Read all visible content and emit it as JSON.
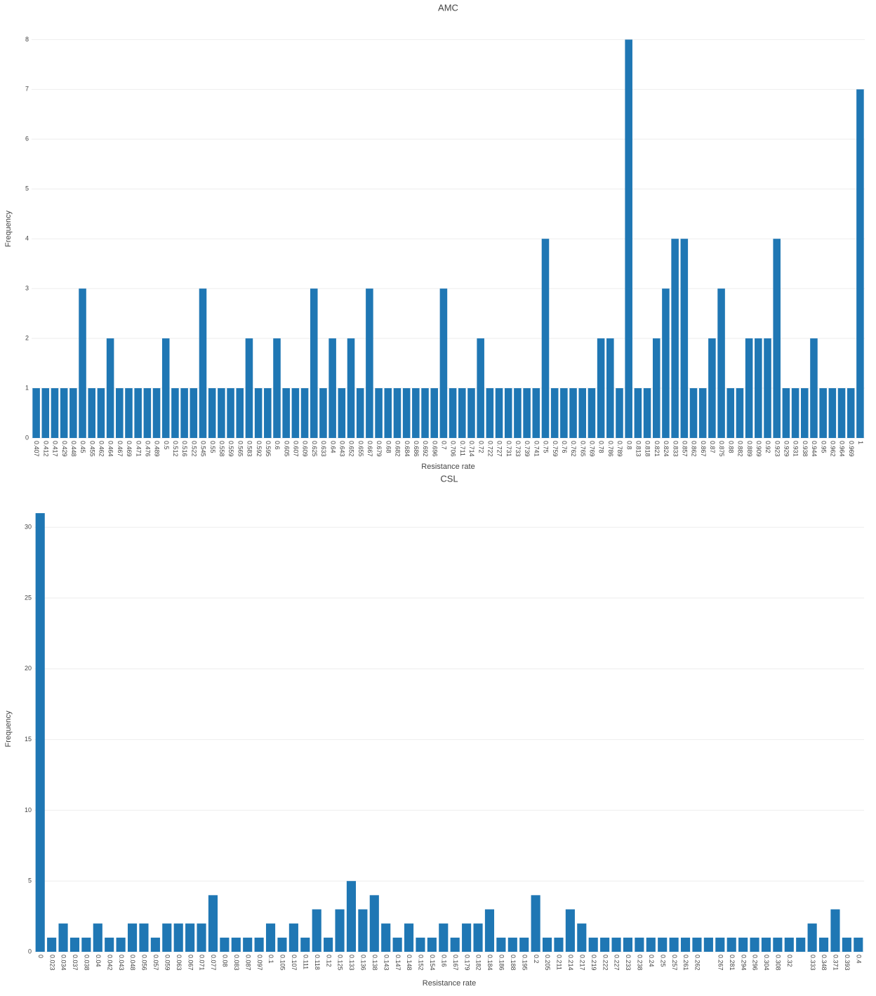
{
  "chart_data": [
    {
      "type": "bar",
      "title": "AMC",
      "x_label": "Resistance rate",
      "y_label": "Frequency",
      "color": "#1f77b4",
      "grid": true,
      "categories": [
        "0.407",
        "0.412",
        "0.417",
        "0.429",
        "0.448",
        "0.45",
        "0.455",
        "0.462",
        "0.464",
        "0.467",
        "0.469",
        "0.471",
        "0.476",
        "0.489",
        "0.5",
        "0.512",
        "0.516",
        "0.522",
        "0.545",
        "0.55",
        "0.558",
        "0.559",
        "0.565",
        "0.583",
        "0.592",
        "0.595",
        "0.6",
        "0.605",
        "0.607",
        "0.609",
        "0.625",
        "0.633",
        "0.64",
        "0.643",
        "0.652",
        "0.655",
        "0.667",
        "0.679",
        "0.68",
        "0.682",
        "0.684",
        "0.686",
        "0.692",
        "0.696",
        "0.7",
        "0.706",
        "0.711",
        "0.714",
        "0.72",
        "0.722",
        "0.727",
        "0.731",
        "0.733",
        "0.739",
        "0.741",
        "0.75",
        "0.759",
        "0.76",
        "0.762",
        "0.765",
        "0.769",
        "0.78",
        "0.786",
        "0.789",
        "0.8",
        "0.813",
        "0.818",
        "0.821",
        "0.824",
        "0.833",
        "0.857",
        "0.862",
        "0.867",
        "0.87",
        "0.875",
        "0.88",
        "0.882",
        "0.889",
        "0.909",
        "0.92",
        "0.923",
        "0.929",
        "0.931",
        "0.938",
        "0.944",
        "0.95",
        "0.962",
        "0.964",
        "0.969",
        "1"
      ],
      "values": [
        1,
        1,
        1,
        1,
        1,
        3,
        1,
        1,
        2,
        1,
        1,
        1,
        1,
        1,
        2,
        1,
        1,
        1,
        3,
        1,
        1,
        1,
        1,
        2,
        1,
        1,
        2,
        1,
        1,
        1,
        3,
        1,
        2,
        1,
        2,
        1,
        3,
        1,
        1,
        1,
        1,
        1,
        1,
        1,
        3,
        1,
        1,
        1,
        2,
        1,
        1,
        1,
        1,
        1,
        1,
        4,
        1,
        1,
        1,
        1,
        1,
        2,
        2,
        1,
        8,
        1,
        1,
        2,
        3,
        4,
        4,
        1,
        1,
        2,
        3,
        1,
        1,
        2,
        2,
        2,
        4,
        1,
        1,
        1,
        2,
        1,
        1,
        1,
        1,
        7
      ],
      "ylim": [
        0,
        8.4
      ],
      "yticks": [
        0,
        1,
        2,
        3,
        4,
        5,
        6,
        7,
        8
      ]
    },
    {
      "type": "bar",
      "title": "CSL",
      "x_label": "Resistance rate",
      "y_label": "Frequency",
      "color": "#1f77b4",
      "grid": true,
      "categories": [
        "0",
        "0.023",
        "0.034",
        "0.037",
        "0.038",
        "0.04",
        "0.042",
        "0.043",
        "0.048",
        "0.056",
        "0.057",
        "0.059",
        "0.063",
        "0.067",
        "0.071",
        "0.077",
        "0.08",
        "0.083",
        "0.087",
        "0.097",
        "0.1",
        "0.105",
        "0.107",
        "0.111",
        "0.118",
        "0.12",
        "0.125",
        "0.133",
        "0.136",
        "0.138",
        "0.143",
        "0.147",
        "0.148",
        "0.152",
        "0.154",
        "0.16",
        "0.167",
        "0.179",
        "0.182",
        "0.184",
        "0.186",
        "0.188",
        "0.195",
        "0.2",
        "0.205",
        "0.211",
        "0.214",
        "0.217",
        "0.219",
        "0.222",
        "0.227",
        "0.233",
        "0.238",
        "0.24",
        "0.25",
        "0.257",
        "0.261",
        "0.262",
        null,
        "0.267",
        "0.281",
        "0.294",
        "0.296",
        "0.304",
        "0.308",
        "0.32",
        null,
        "0.333",
        "0.348",
        "0.371",
        "0.393",
        "0.4"
      ],
      "values": [
        31,
        1,
        2,
        1,
        1,
        2,
        1,
        1,
        2,
        2,
        1,
        2,
        2,
        2,
        2,
        4,
        1,
        1,
        1,
        1,
        2,
        1,
        2,
        1,
        3,
        1,
        3,
        5,
        3,
        4,
        2,
        1,
        2,
        1,
        1,
        2,
        1,
        2,
        2,
        3,
        1,
        1,
        1,
        4,
        1,
        1,
        3,
        2,
        1,
        1,
        1,
        1,
        1,
        1,
        1,
        1,
        1,
        1,
        1,
        1,
        1,
        1,
        1,
        1,
        1,
        1,
        1,
        2,
        1,
        3,
        1,
        1
      ],
      "ylim": [
        0,
        31.5
      ],
      "yticks": [
        0,
        5,
        10,
        15,
        20,
        25,
        30
      ]
    }
  ]
}
